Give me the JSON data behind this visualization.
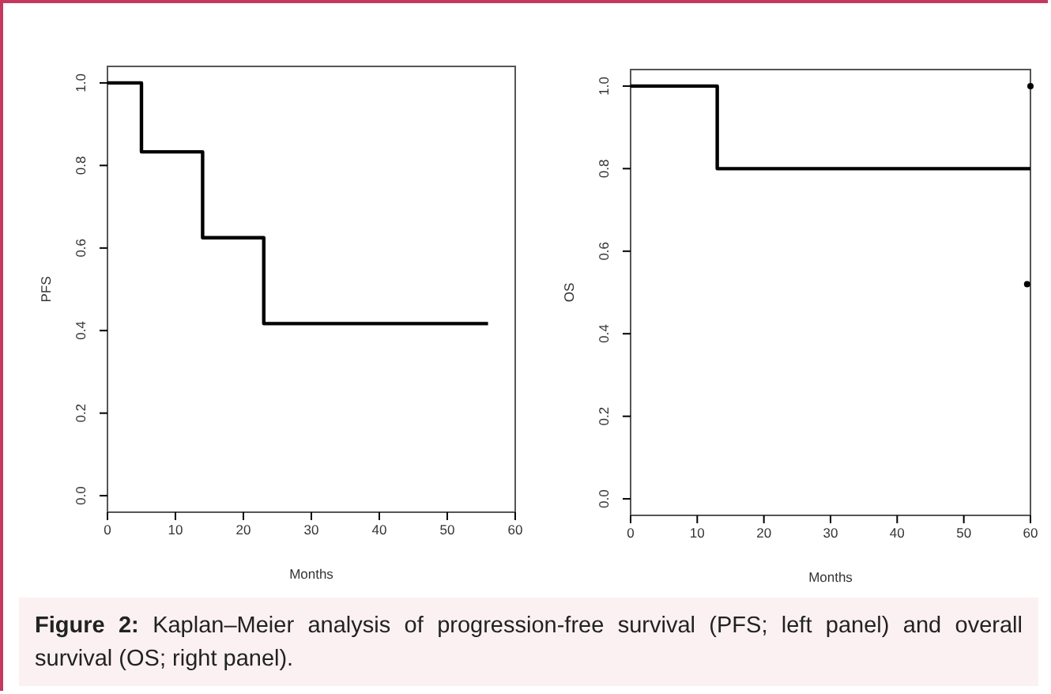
{
  "chart_data": [
    {
      "type": "step",
      "xlabel": "Months",
      "ylabel": "PFS",
      "xlim": [
        0,
        60
      ],
      "xticks": [
        0,
        10,
        20,
        30,
        40,
        50,
        60
      ],
      "ylim": [
        -0.04,
        1.04
      ],
      "yticks": [
        {
          "value": 0,
          "label": "0.0"
        },
        {
          "value": 0.2,
          "label": "0.2"
        },
        {
          "value": 0.4,
          "label": "0.4"
        },
        {
          "value": 0.6,
          "label": "0.6"
        },
        {
          "value": 0.8,
          "label": "0.8"
        },
        {
          "value": 1,
          "label": "1.0"
        }
      ],
      "grid": false,
      "line_style": "solid",
      "series": [
        {
          "color": "#000000",
          "x": [
            0,
            5,
            14,
            23,
            56
          ],
          "values": [
            1,
            0.833,
            0.625,
            0.417,
            0.417
          ]
        }
      ],
      "annotations": [
        "Figure 2: Kaplan–Meier analysis of progression-free survival (PFS; left panel) and overall survival (OS; right panel)."
      ]
    },
    {
      "type": "step",
      "xlabel": "Months",
      "ylabel": "OS",
      "xlim": [
        0,
        60
      ],
      "xticks": [
        0,
        10,
        20,
        30,
        40,
        50,
        60
      ],
      "ylim": [
        -0.04,
        1.04
      ],
      "yticks": [
        {
          "value": 0,
          "label": "0.0"
        },
        {
          "value": 0.2,
          "label": "0.2"
        },
        {
          "value": 0.4,
          "label": "0.4"
        },
        {
          "value": 0.6,
          "label": "0.6"
        },
        {
          "value": 0.8,
          "label": "0.8"
        },
        {
          "value": 1,
          "label": "1.0"
        }
      ],
      "grid": false,
      "line_style": "solid",
      "series": [
        {
          "color": "#000000",
          "x": [
            0,
            13,
            60
          ],
          "values": [
            1,
            0.8,
            0.8
          ]
        },
        {
          "type": "scatter",
          "marker": "circle",
          "color": "#000000",
          "x": [
            60,
            59.5
          ],
          "values": [
            1,
            0.52
          ]
        }
      ]
    }
  ]
}
